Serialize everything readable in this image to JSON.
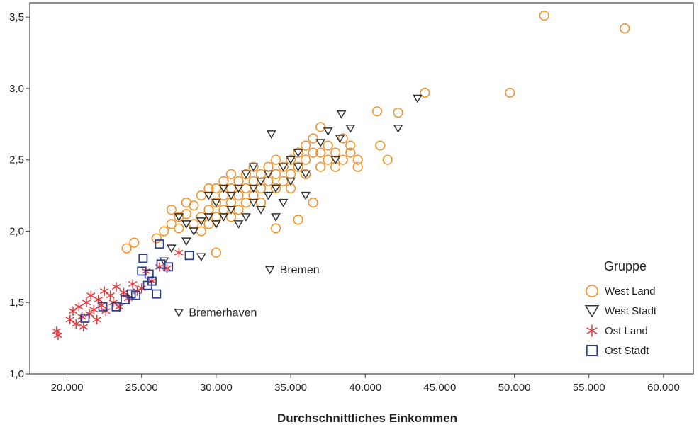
{
  "chart_data": {
    "type": "scatter",
    "title": "",
    "xlabel": "Durchschnittliches Einkommen",
    "ylabel": "",
    "xlim": [
      17500,
      62000
    ],
    "ylim": [
      1.0,
      3.6
    ],
    "x_ticks": [
      20000,
      25000,
      30000,
      35000,
      40000,
      45000,
      50000,
      55000,
      60000
    ],
    "x_tick_labels": [
      "20.000",
      "25.000",
      "30.000",
      "35.000",
      "40.000",
      "45.000",
      "50.000",
      "55.000",
      "60.000"
    ],
    "y_ticks": [
      1.0,
      1.5,
      2.0,
      2.5,
      3.0,
      3.5
    ],
    "y_tick_labels": [
      "1,0",
      "1,5",
      "2,0",
      "2,5",
      "3,0",
      "3,5"
    ],
    "grid": false,
    "legend": {
      "title": "Gruppe",
      "placement": "bottom-right",
      "entries": [
        "West Land",
        "West Stadt",
        "Ost Land",
        "Ost Stadt"
      ]
    },
    "annotations": [
      {
        "text": "Bremen",
        "x": 33600,
        "y": 1.73
      },
      {
        "text": "Bremerhaven",
        "x": 27500,
        "y": 1.43
      }
    ],
    "series": [
      {
        "name": "West Land",
        "marker": "circle",
        "color": "#f0922b",
        "points": [
          [
            24000,
            1.88
          ],
          [
            24500,
            1.92
          ],
          [
            26000,
            1.95
          ],
          [
            26500,
            2.0
          ],
          [
            27000,
            2.05
          ],
          [
            27000,
            2.15
          ],
          [
            27500,
            2.1
          ],
          [
            27500,
            2.02
          ],
          [
            28000,
            2.12
          ],
          [
            28000,
            2.2
          ],
          [
            28500,
            2.05
          ],
          [
            28500,
            2.18
          ],
          [
            29000,
            2.1
          ],
          [
            29000,
            2.25
          ],
          [
            29000,
            2.0
          ],
          [
            29500,
            2.15
          ],
          [
            29500,
            2.3
          ],
          [
            29500,
            2.05
          ],
          [
            30000,
            2.2
          ],
          [
            30000,
            2.1
          ],
          [
            30000,
            2.3
          ],
          [
            30000,
            1.85
          ],
          [
            30500,
            2.25
          ],
          [
            30500,
            2.15
          ],
          [
            30500,
            2.35
          ],
          [
            31000,
            2.2
          ],
          [
            31000,
            2.3
          ],
          [
            31000,
            2.1
          ],
          [
            31000,
            2.4
          ],
          [
            31500,
            2.25
          ],
          [
            31500,
            2.35
          ],
          [
            31500,
            2.15
          ],
          [
            32000,
            2.3
          ],
          [
            32000,
            2.2
          ],
          [
            32000,
            2.4
          ],
          [
            32500,
            2.35
          ],
          [
            32500,
            2.25
          ],
          [
            32500,
            2.45
          ],
          [
            33000,
            2.3
          ],
          [
            33000,
            2.4
          ],
          [
            33000,
            2.2
          ],
          [
            33500,
            2.35
          ],
          [
            33500,
            2.45
          ],
          [
            34000,
            2.4
          ],
          [
            34000,
            2.3
          ],
          [
            34000,
            2.5
          ],
          [
            34000,
            2.02
          ],
          [
            34500,
            2.45
          ],
          [
            34500,
            2.35
          ],
          [
            35000,
            2.4
          ],
          [
            35000,
            2.5
          ],
          [
            35000,
            2.3
          ],
          [
            35500,
            2.45
          ],
          [
            35500,
            2.55
          ],
          [
            35500,
            2.08
          ],
          [
            36000,
            2.5
          ],
          [
            36000,
            2.6
          ],
          [
            36000,
            2.4
          ],
          [
            36500,
            2.55
          ],
          [
            36500,
            2.2
          ],
          [
            36500,
            2.65
          ],
          [
            37000,
            2.45
          ],
          [
            37000,
            2.55
          ],
          [
            37000,
            2.73
          ],
          [
            37500,
            2.5
          ],
          [
            37500,
            2.6
          ],
          [
            38000,
            2.55
          ],
          [
            38000,
            2.45
          ],
          [
            38500,
            2.65
          ],
          [
            38500,
            2.5
          ],
          [
            39000,
            2.6
          ],
          [
            39000,
            2.55
          ],
          [
            39500,
            2.45
          ],
          [
            39500,
            2.5
          ],
          [
            40800,
            2.84
          ],
          [
            41000,
            2.6
          ],
          [
            41500,
            2.5
          ],
          [
            42200,
            2.83
          ],
          [
            44000,
            2.97
          ],
          [
            49700,
            2.97
          ],
          [
            52000,
            3.51
          ],
          [
            57400,
            3.42
          ]
        ]
      },
      {
        "name": "West Stadt",
        "marker": "triangle-down",
        "color": "#333333",
        "points": [
          [
            26500,
            1.79
          ],
          [
            27000,
            1.88
          ],
          [
            27500,
            2.1
          ],
          [
            28000,
            1.93
          ],
          [
            28000,
            2.05
          ],
          [
            28500,
            2.0
          ],
          [
            29000,
            1.82
          ],
          [
            29000,
            2.07
          ],
          [
            29500,
            2.1
          ],
          [
            29500,
            2.25
          ],
          [
            30000,
            2.05
          ],
          [
            30000,
            2.2
          ],
          [
            30500,
            2.1
          ],
          [
            30500,
            2.3
          ],
          [
            31000,
            2.15
          ],
          [
            31000,
            2.25
          ],
          [
            31500,
            2.05
          ],
          [
            31500,
            2.3
          ],
          [
            32000,
            2.1
          ],
          [
            32000,
            2.4
          ],
          [
            32500,
            2.2
          ],
          [
            32500,
            2.3
          ],
          [
            32500,
            2.45
          ],
          [
            33000,
            2.15
          ],
          [
            33000,
            2.35
          ],
          [
            33500,
            2.25
          ],
          [
            33500,
            2.4
          ],
          [
            33700,
            2.68
          ],
          [
            34000,
            2.3
          ],
          [
            34000,
            2.1
          ],
          [
            34500,
            2.45
          ],
          [
            34500,
            2.2
          ],
          [
            35000,
            2.35
          ],
          [
            35000,
            2.5
          ],
          [
            35500,
            2.45
          ],
          [
            35500,
            2.55
          ],
          [
            36000,
            2.25
          ],
          [
            36000,
            2.4
          ],
          [
            37000,
            2.62
          ],
          [
            37500,
            2.7
          ],
          [
            38000,
            2.5
          ],
          [
            38300,
            2.65
          ],
          [
            38400,
            2.82
          ],
          [
            39000,
            2.72
          ],
          [
            42200,
            2.72
          ],
          [
            43500,
            2.93
          ],
          [
            33600,
            1.73
          ],
          [
            27500,
            1.43
          ]
        ]
      },
      {
        "name": "Ost Land",
        "marker": "star",
        "color": "#e0383b",
        "points": [
          [
            19300,
            1.3
          ],
          [
            19400,
            1.27
          ],
          [
            20200,
            1.38
          ],
          [
            20400,
            1.44
          ],
          [
            20600,
            1.35
          ],
          [
            20800,
            1.47
          ],
          [
            21000,
            1.4
          ],
          [
            21100,
            1.33
          ],
          [
            21300,
            1.5
          ],
          [
            21500,
            1.42
          ],
          [
            21600,
            1.55
          ],
          [
            21800,
            1.45
          ],
          [
            22000,
            1.38
          ],
          [
            22100,
            1.52
          ],
          [
            22300,
            1.48
          ],
          [
            22500,
            1.58
          ],
          [
            22600,
            1.44
          ],
          [
            22900,
            1.55
          ],
          [
            23100,
            1.5
          ],
          [
            23300,
            1.61
          ],
          [
            23500,
            1.47
          ],
          [
            23800,
            1.57
          ],
          [
            24100,
            1.53
          ],
          [
            24400,
            1.63
          ],
          [
            24700,
            1.58
          ],
          [
            25000,
            1.6
          ],
          [
            25300,
            1.72
          ],
          [
            25700,
            1.65
          ],
          [
            26200,
            1.75
          ],
          [
            26700,
            1.74
          ],
          [
            27500,
            1.85
          ]
        ]
      },
      {
        "name": "Ost Stadt",
        "marker": "square",
        "color": "#2b3e91",
        "points": [
          [
            21200,
            1.39
          ],
          [
            22400,
            1.47
          ],
          [
            23300,
            1.47
          ],
          [
            23900,
            1.52
          ],
          [
            24300,
            1.56
          ],
          [
            24600,
            1.55
          ],
          [
            25000,
            1.72
          ],
          [
            25100,
            1.81
          ],
          [
            25400,
            1.62
          ],
          [
            25500,
            1.7
          ],
          [
            25700,
            1.65
          ],
          [
            26000,
            1.56
          ],
          [
            26300,
            1.77
          ],
          [
            26800,
            1.75
          ],
          [
            26200,
            1.91
          ],
          [
            28200,
            1.83
          ]
        ]
      }
    ]
  }
}
